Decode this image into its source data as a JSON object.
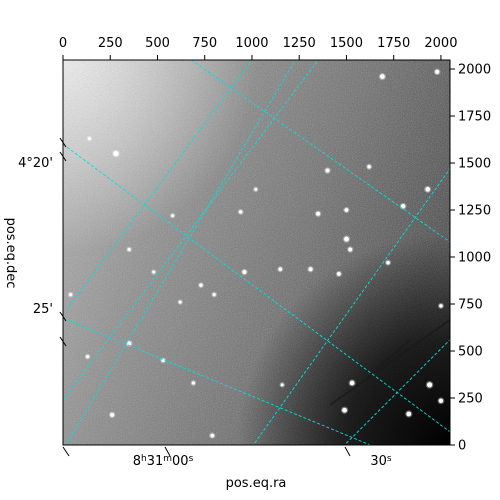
{
  "chart_data": {
    "type": "image",
    "title": "",
    "pixel_x_ticks": [
      0,
      250,
      500,
      750,
      1000,
      1250,
      1500,
      1750,
      2000
    ],
    "pixel_y_ticks": [
      0,
      250,
      500,
      750,
      1000,
      1250,
      1500,
      1750,
      2000
    ],
    "pixel_xlim": [
      0,
      2048
    ],
    "pixel_ylim": [
      0,
      2048
    ],
    "xlabel": "pos.eq.ra",
    "ylabel": "pos.eq.dec",
    "ra_tick_labels": [
      "8h31m00s",
      "30s"
    ],
    "dec_tick_labels": [
      "4°20'",
      "25'"
    ],
    "grid_color": "#00e0e0",
    "grid_style": "dashed",
    "background": "grayscale-noise, brighter to the left, dark lower-right corner",
    "stars": [
      {
        "x": 1690,
        "y": 1960,
        "mag": 2.4
      },
      {
        "x": 1980,
        "y": 1985,
        "mag": 2.1
      },
      {
        "x": 280,
        "y": 1550,
        "mag": 2.6
      },
      {
        "x": 1400,
        "y": 1460,
        "mag": 2.0
      },
      {
        "x": 1620,
        "y": 1480,
        "mag": 1.8
      },
      {
        "x": 1930,
        "y": 1360,
        "mag": 2.3
      },
      {
        "x": 1800,
        "y": 1270,
        "mag": 2.2
      },
      {
        "x": 1500,
        "y": 1250,
        "mag": 1.9
      },
      {
        "x": 1350,
        "y": 1230,
        "mag": 2.0
      },
      {
        "x": 1500,
        "y": 1095,
        "mag": 2.4
      },
      {
        "x": 1520,
        "y": 1040,
        "mag": 2.0
      },
      {
        "x": 1310,
        "y": 935,
        "mag": 2.0
      },
      {
        "x": 1460,
        "y": 910,
        "mag": 1.9
      },
      {
        "x": 1150,
        "y": 935,
        "mag": 1.8
      },
      {
        "x": 960,
        "y": 920,
        "mag": 2.0
      },
      {
        "x": 1720,
        "y": 970,
        "mag": 1.8
      },
      {
        "x": 730,
        "y": 850,
        "mag": 1.7
      },
      {
        "x": 800,
        "y": 800,
        "mag": 1.6
      },
      {
        "x": 940,
        "y": 1240,
        "mag": 1.7
      },
      {
        "x": 350,
        "y": 1040,
        "mag": 1.6
      },
      {
        "x": 530,
        "y": 450,
        "mag": 1.7
      },
      {
        "x": 350,
        "y": 540,
        "mag": 2.1
      },
      {
        "x": 2000,
        "y": 740,
        "mag": 1.8
      },
      {
        "x": 1530,
        "y": 330,
        "mag": 2.3
      },
      {
        "x": 1940,
        "y": 320,
        "mag": 2.6
      },
      {
        "x": 2000,
        "y": 235,
        "mag": 2.2
      },
      {
        "x": 1490,
        "y": 185,
        "mag": 2.4
      },
      {
        "x": 1830,
        "y": 165,
        "mag": 2.4
      },
      {
        "x": 260,
        "y": 160,
        "mag": 2.0
      },
      {
        "x": 790,
        "y": 50,
        "mag": 1.9
      },
      {
        "x": 690,
        "y": 330,
        "mag": 1.6
      },
      {
        "x": 1160,
        "y": 320,
        "mag": 1.5
      },
      {
        "x": 130,
        "y": 470,
        "mag": 1.6
      },
      {
        "x": 40,
        "y": 800,
        "mag": 1.6
      },
      {
        "x": 140,
        "y": 1630,
        "mag": 1.5
      },
      {
        "x": 1020,
        "y": 1360,
        "mag": 1.5
      },
      {
        "x": 580,
        "y": 1220,
        "mag": 1.5
      },
      {
        "x": 620,
        "y": 760,
        "mag": 1.5
      },
      {
        "x": 480,
        "y": 920,
        "mag": 1.5
      }
    ],
    "grid_lines": {
      "ra": [
        {
          "from": [
            0,
            1600
          ],
          "to": [
            2048,
            70
          ]
        },
        {
          "from": [
            0,
            675
          ],
          "to": [
            1650,
            -10
          ]
        },
        {
          "from": [
            680,
            2048
          ],
          "to": [
            2048,
            1080
          ]
        }
      ],
      "dec": [
        {
          "from": [
            0,
            240
          ],
          "to": [
            1350,
            2048
          ]
        },
        {
          "from": [
            10,
            -10
          ],
          "to": [
            1230,
            2048
          ]
        },
        {
          "from": [
            1000,
            -10
          ],
          "to": [
            2048,
            1470
          ]
        },
        {
          "from": [
            1480,
            -10
          ],
          "to": [
            2048,
            560
          ]
        },
        {
          "from": [
            20,
            720
          ],
          "to": [
            1000,
            2048
          ]
        }
      ]
    }
  }
}
